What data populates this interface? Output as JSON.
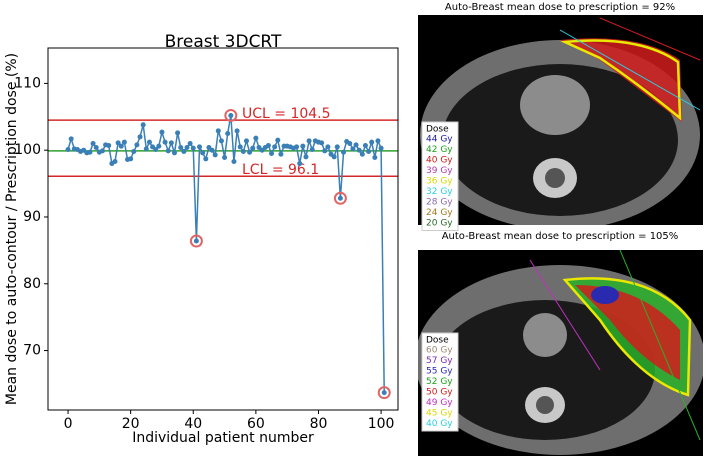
{
  "chart_data": {
    "type": "line",
    "title": "Breast 3DCRT",
    "x_label": "Individual patient number",
    "y_label": "Mean dose to auto-contour / Prescription dose (%)",
    "x": [
      0,
      1,
      2,
      3,
      4,
      5,
      6,
      7,
      8,
      9,
      10,
      11,
      12,
      13,
      14,
      15,
      16,
      17,
      18,
      19,
      20,
      21,
      22,
      23,
      24,
      25,
      26,
      27,
      28,
      29,
      30,
      31,
      32,
      33,
      34,
      35,
      36,
      37,
      38,
      39,
      40,
      41,
      42,
      43,
      44,
      45,
      46,
      47,
      48,
      49,
      50,
      51,
      52,
      53,
      54,
      55,
      56,
      57,
      58,
      59,
      60,
      61,
      62,
      63,
      64,
      65,
      66,
      67,
      68,
      69,
      70,
      71,
      72,
      73,
      74,
      75,
      76,
      77,
      78,
      79,
      80,
      81,
      82,
      83,
      84,
      85,
      86,
      87,
      88,
      89,
      90,
      91,
      92,
      93,
      94,
      95,
      96,
      97,
      98,
      99,
      100,
      101
    ],
    "series": [
      {
        "color": "#3a7fb5",
        "values": [
          100.1,
          101.7,
          100.2,
          100.1,
          99.8,
          100.0,
          99.6,
          99.7,
          101.0,
          100.4,
          99.7,
          99.9,
          100.8,
          100.7,
          98.0,
          98.3,
          101.1,
          100.6,
          101.2,
          98.6,
          98.7,
          99.8,
          100.8,
          102.0,
          103.8,
          100.2,
          101.2,
          100.5,
          100.1,
          100.6,
          102.7,
          101.2,
          99.9,
          101.1,
          99.6,
          102.6,
          100.4,
          99.8,
          100.4,
          101.0,
          100.3,
          86.4,
          100.5,
          99.6,
          98.7,
          100.4,
          100.0,
          99.3,
          102.9,
          101.4,
          98.9,
          102.5,
          105.2,
          98.3,
          102.9,
          100.5,
          99.8,
          101.4,
          99.7,
          100.3,
          101.8,
          100.4,
          100.0,
          100.4,
          100.7,
          99.5,
          100.5,
          101.5,
          99.4,
          100.6,
          100.6,
          100.5,
          100.3,
          100.5,
          98.0,
          100.6,
          99.0,
          101.4,
          100.1,
          101.4,
          101.2,
          101.1,
          99.9,
          100.5,
          99.4,
          99.0,
          100.5,
          92.8,
          99.7,
          101.3,
          101.0,
          100.2,
          100.8,
          100.0,
          99.4,
          100.7,
          99.8,
          101.2,
          98.9,
          101.4,
          100.3,
          63.7
        ]
      }
    ],
    "circled": [
      41,
      52,
      87,
      101
    ],
    "circle_color": "#e06666",
    "hlines": [
      {
        "value": 104.5,
        "color": "#d62728",
        "label": "UCL = 104.5"
      },
      {
        "value": 96.1,
        "color": "#d62728",
        "label": "LCL = 96.1"
      },
      {
        "value": 99.9,
        "color": "#2ca02c"
      }
    ],
    "xlim": [
      -6.4,
      105.4
    ],
    "ylim": [
      61.1,
      115.3
    ],
    "xticks": [
      0,
      20,
      40,
      60,
      80,
      100
    ],
    "yticks": [
      70,
      80,
      90,
      100,
      110
    ]
  },
  "images": [
    {
      "title": "Auto-Breast mean dose to prescription = 92%",
      "legend_title": "Dose",
      "legend": [
        {
          "label": "44 Gy",
          "color": "#1a1aa0"
        },
        {
          "label": "42 Gy",
          "color": "#1a9e1a"
        },
        {
          "label": "40 Gy",
          "color": "#d21c1c"
        },
        {
          "label": "39 Gy",
          "color": "#b03cb0"
        },
        {
          "label": "36 Gy",
          "color": "#d8d800"
        },
        {
          "label": "32 Gy",
          "color": "#2ad0e0"
        },
        {
          "label": "28 Gy",
          "color": "#8a6aa8"
        },
        {
          "label": "24 Gy",
          "color": "#a07a20"
        },
        {
          "label": "20 Gy",
          "color": "#2a6a2a"
        }
      ]
    },
    {
      "title": "Auto-Breast mean dose to prescription = 105%",
      "legend_title": "Dose",
      "legend": [
        {
          "label": "60 Gy",
          "color": "#9a8a7a"
        },
        {
          "label": "57 Gy",
          "color": "#7a2ab0"
        },
        {
          "label": "55 Gy",
          "color": "#2a2ab0"
        },
        {
          "label": "52 Gy",
          "color": "#1a9e1a"
        },
        {
          "label": "50 Gy",
          "color": "#d21c1c"
        },
        {
          "label": "49 Gy",
          "color": "#c030c0"
        },
        {
          "label": "45 Gy",
          "color": "#d8d800"
        },
        {
          "label": "40 Gy",
          "color": "#2ad0e0"
        }
      ]
    }
  ]
}
